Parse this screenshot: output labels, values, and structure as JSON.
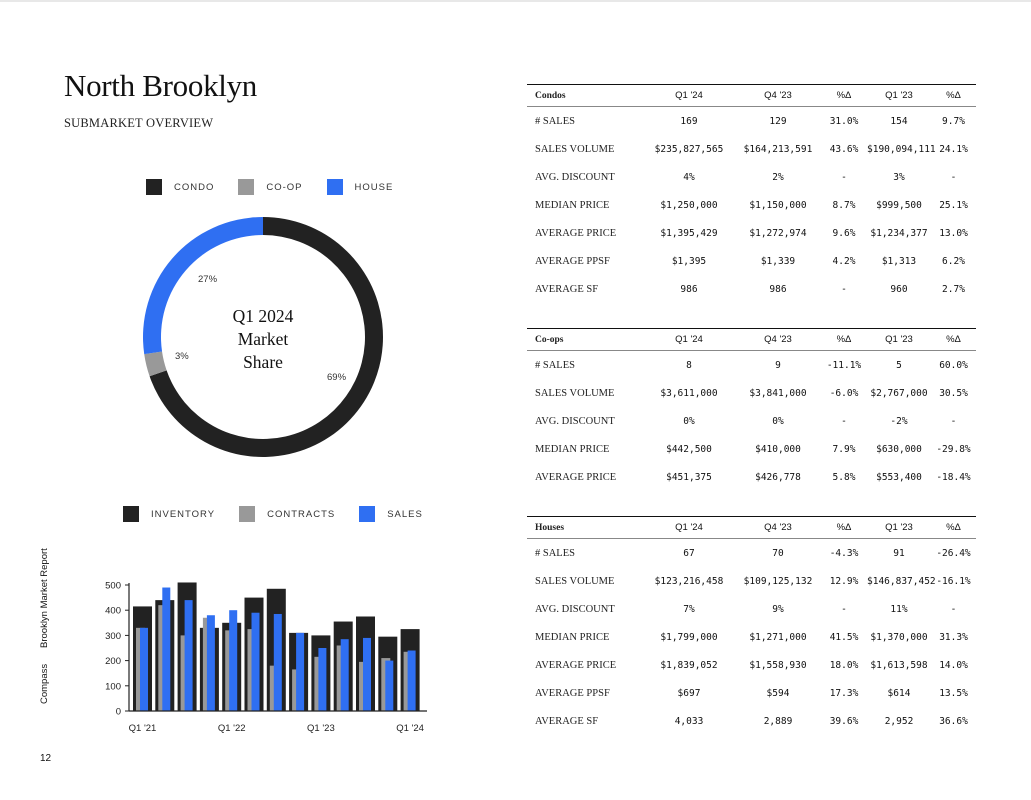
{
  "page": {
    "title": "North Brooklyn",
    "subtitle": "SUBMARKET OVERVIEW",
    "page_number": "12",
    "sidebar": {
      "brand": "Compass",
      "report": "Brooklyn Market Report"
    }
  },
  "colors": {
    "condo": "#222222",
    "coop": "#999999",
    "house": "#2f6ff2",
    "inventory": "#222222",
    "contracts": "#999999",
    "sales": "#2f6ff2"
  },
  "donut": {
    "legend": [
      {
        "label": "CONDO",
        "color": "#222222"
      },
      {
        "label": "CO-OP",
        "color": "#999999"
      },
      {
        "label": "HOUSE",
        "color": "#2f6ff2"
      }
    ],
    "center_lines": [
      "Q1 2024",
      "Market",
      "Share"
    ],
    "labels": {
      "condo": "69%",
      "coop": "3%",
      "house": "27%"
    }
  },
  "bar_legend": [
    {
      "label": "INVENTORY",
      "color": "#222222"
    },
    {
      "label": "CONTRACTS",
      "color": "#999999"
    },
    {
      "label": "SALES",
      "color": "#2f6ff2"
    }
  ],
  "chart_data": [
    {
      "type": "pie",
      "title": "Q1 2024 Market Share",
      "categories": [
        "CONDO",
        "CO-OP",
        "HOUSE"
      ],
      "values": [
        69,
        3,
        27
      ],
      "colors": [
        "#222222",
        "#999999",
        "#2f6ff2"
      ]
    },
    {
      "type": "bar",
      "categories": [
        "Q1 '21",
        "Q2 '21",
        "Q3 '21",
        "Q4 '21",
        "Q1 '22",
        "Q2 '22",
        "Q3 '22",
        "Q4 '22",
        "Q1 '23",
        "Q2 '23",
        "Q3 '23",
        "Q4 '23",
        "Q1 '24"
      ],
      "tick_labels": [
        "Q1 '21",
        "Q1 '22",
        "Q1 '23",
        "Q1 '24"
      ],
      "series": [
        {
          "name": "INVENTORY",
          "color": "#222222",
          "values": [
            415,
            440,
            510,
            330,
            350,
            450,
            485,
            310,
            300,
            355,
            375,
            295,
            325
          ]
        },
        {
          "name": "CONTRACTS",
          "color": "#999999",
          "values": [
            330,
            420,
            300,
            370,
            320,
            325,
            180,
            165,
            215,
            260,
            195,
            210,
            235
          ]
        },
        {
          "name": "SALES",
          "color": "#2f6ff2",
          "values": [
            330,
            490,
            440,
            380,
            400,
            390,
            385,
            310,
            250,
            285,
            290,
            200,
            240
          ]
        }
      ],
      "yticks": [
        0,
        100,
        200,
        300,
        400,
        500
      ],
      "ylim": [
        0,
        520
      ],
      "grid": false
    }
  ],
  "tables": [
    {
      "name": "Condos",
      "headers": [
        "Q1 '24",
        "Q4 '23",
        "%Δ",
        "Q1 '23",
        "%Δ"
      ],
      "rows": [
        {
          "label": "# SALES",
          "values": [
            "169",
            "129",
            "31.0%",
            "154",
            "9.7%"
          ]
        },
        {
          "label": "SALES VOLUME",
          "values": [
            "$235,827,565",
            "$164,213,591",
            "43.6%",
            "$190,094,111",
            "24.1%"
          ]
        },
        {
          "label": "AVG. DISCOUNT",
          "values": [
            "4%",
            "2%",
            "-",
            "3%",
            "-"
          ]
        },
        {
          "label": "MEDIAN PRICE",
          "values": [
            "$1,250,000",
            "$1,150,000",
            "8.7%",
            "$999,500",
            "25.1%"
          ]
        },
        {
          "label": "AVERAGE PRICE",
          "values": [
            "$1,395,429",
            "$1,272,974",
            "9.6%",
            "$1,234,377",
            "13.0%"
          ]
        },
        {
          "label": "AVERAGE PPSF",
          "values": [
            "$1,395",
            "$1,339",
            "4.2%",
            "$1,313",
            "6.2%"
          ]
        },
        {
          "label": "AVERAGE SF",
          "values": [
            "986",
            "986",
            "-",
            "960",
            "2.7%"
          ]
        }
      ]
    },
    {
      "name": "Co-ops",
      "headers": [
        "Q1 '24",
        "Q4 '23",
        "%Δ",
        "Q1 '23",
        "%Δ"
      ],
      "rows": [
        {
          "label": "# SALES",
          "values": [
            "8",
            "9",
            "-11.1%",
            "5",
            "60.0%"
          ]
        },
        {
          "label": "SALES VOLUME",
          "values": [
            "$3,611,000",
            "$3,841,000",
            "-6.0%",
            "$2,767,000",
            "30.5%"
          ]
        },
        {
          "label": "AVG. DISCOUNT",
          "values": [
            "0%",
            "0%",
            "-",
            "-2%",
            "-"
          ]
        },
        {
          "label": "MEDIAN PRICE",
          "values": [
            "$442,500",
            "$410,000",
            "7.9%",
            "$630,000",
            "-29.8%"
          ]
        },
        {
          "label": "AVERAGE PRICE",
          "values": [
            "$451,375",
            "$426,778",
            "5.8%",
            "$553,400",
            "-18.4%"
          ]
        }
      ]
    },
    {
      "name": "Houses",
      "headers": [
        "Q1 '24",
        "Q4 '23",
        "%Δ",
        "Q1 '23",
        "%Δ"
      ],
      "rows": [
        {
          "label": "# SALES",
          "values": [
            "67",
            "70",
            "-4.3%",
            "91",
            "-26.4%"
          ]
        },
        {
          "label": "SALES VOLUME",
          "values": [
            "$123,216,458",
            "$109,125,132",
            "12.9%",
            "$146,837,452",
            "-16.1%"
          ]
        },
        {
          "label": "AVG. DISCOUNT",
          "values": [
            "7%",
            "9%",
            "-",
            "11%",
            "-"
          ]
        },
        {
          "label": "MEDIAN PRICE",
          "values": [
            "$1,799,000",
            "$1,271,000",
            "41.5%",
            "$1,370,000",
            "31.3%"
          ]
        },
        {
          "label": "AVERAGE PRICE",
          "values": [
            "$1,839,052",
            "$1,558,930",
            "18.0%",
            "$1,613,598",
            "14.0%"
          ]
        },
        {
          "label": "AVERAGE PPSF",
          "values": [
            "$697",
            "$594",
            "17.3%",
            "$614",
            "13.5%"
          ]
        },
        {
          "label": "AVERAGE SF",
          "values": [
            "4,033",
            "2,889",
            "39.6%",
            "2,952",
            "36.6%"
          ]
        }
      ]
    }
  ]
}
